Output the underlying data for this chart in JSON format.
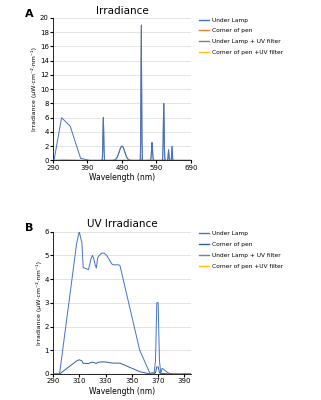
{
  "panel_A": {
    "title": "Irradiance",
    "xlabel": "Wavelength (nm)",
    "ylabel": "Irradiance (μW·cm⁻²·nm⁻¹)",
    "xlim": [
      290,
      690
    ],
    "ylim": [
      0,
      20
    ],
    "yticks": [
      0,
      2,
      4,
      6,
      8,
      10,
      12,
      14,
      16,
      18,
      20
    ],
    "xticks": [
      290,
      390,
      490,
      590,
      690
    ],
    "legend_labels": [
      "Under Lamp",
      "Corner of pen",
      "Under Lamp + UV filter",
      "Corner of pen +UV filter"
    ],
    "colors": [
      "#4472c4",
      "#ed7d31",
      "#7f7f7f",
      "#ffc000"
    ]
  },
  "panel_B": {
    "title": "UV Irradiance",
    "xlabel": "Wavelength (nm)",
    "ylabel": "Irradiance (μW·cm⁻²·nm⁻¹)",
    "xlim": [
      290,
      395
    ],
    "ylim": [
      0,
      6
    ],
    "yticks": [
      0,
      1,
      2,
      3,
      4,
      5,
      6
    ],
    "xticks": [
      290,
      310,
      330,
      350,
      370,
      390
    ],
    "legend_labels": [
      "Under Lamp",
      "Corner of pen",
      "Under Lamp + UV filter",
      "Corner of pen +UV filter"
    ],
    "colors": [
      "#4472c4",
      "#4472c4",
      "#7f7f7f",
      "#ffc000"
    ]
  },
  "label_A": "A",
  "label_B": "B",
  "bg_color": "#ffffff",
  "plot_bg": "#ffffff",
  "grid_color": "#d9d9d9"
}
